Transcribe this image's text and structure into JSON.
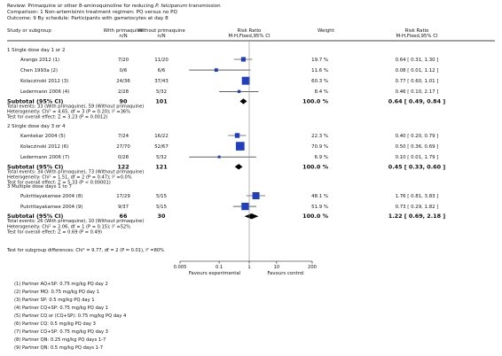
{
  "header": {
    "review_label": "Review:",
    "review_text": "Primaquine or other 8-aminoquinoline for reducing",
    "review_species": "P. falciparum",
    "review_tail": "transmission",
    "comparison_label": "Comparison:",
    "comparison_text": "1 Non-artemisinin treatment regimen: PQ versus no PQ",
    "outcome_label": "Outcome:",
    "outcome_text": "9 By schedule: Participants with gametocytes at day 8"
  },
  "columns": {
    "study": "Study or subgroup",
    "with": "With primaquine",
    "without": "Without primaquine",
    "n": "n/N",
    "rr": "Risk Ratio",
    "rr_method": "M-H,Fixed,95% CI",
    "weight": "Weight",
    "rr2": "Risk Ratio",
    "rr2_method": "M-H,Fixed,95% CI"
  },
  "chart_data": {
    "type": "forest",
    "x_scale": "log",
    "xlim": [
      0.005,
      200
    ],
    "x_ticks": [
      "0.005",
      "0.1",
      "1",
      "10",
      "200"
    ],
    "x_tick_values": [
      0.005,
      0.1,
      1,
      10,
      200
    ],
    "favours_left": "Favours experimental",
    "favours_right": "Favours control",
    "groups": [
      {
        "title": "1 Single dose day 1 or 2",
        "studies": [
          {
            "name": "Arango 2012 (1)",
            "with": "7/20",
            "without": "11/20",
            "weight": "19.7 %",
            "ci_text": "0.64 [ 0.31, 1.30 ]",
            "rr": 0.64,
            "lo": 0.31,
            "hi": 1.3,
            "w": 19.7
          },
          {
            "name": "Chen 1993a (2)",
            "with": "0/6",
            "without": "6/6",
            "weight": "11.6 %",
            "ci_text": "0.08 [ 0.01, 1.12 ]",
            "rr": 0.08,
            "lo": 0.01,
            "hi": 1.12,
            "w": 11.6
          },
          {
            "name": "Kolaczinski 2012 (3)",
            "with": "24/36",
            "without": "37/43",
            "weight": "60.3 %",
            "ci_text": "0.77 [ 0.60, 1.01 ]",
            "rr": 0.77,
            "lo": 0.6,
            "hi": 1.01,
            "w": 60.3
          },
          {
            "name": "Ledermann 2006 (4)",
            "with": "2/28",
            "without": "5/32",
            "weight": "8.4 %",
            "ci_text": "0.46 [ 0.10, 2.17 ]",
            "rr": 0.46,
            "lo": 0.1,
            "hi": 2.17,
            "w": 8.4
          }
        ],
        "subtotal": {
          "label": "Subtotal (95% CI)",
          "with_n": "90",
          "without_n": "101",
          "weight": "100.0 %",
          "ci_text": "0.64 [ 0.49, 0.84 ]",
          "rr": 0.64,
          "lo": 0.49,
          "hi": 0.84
        },
        "notes": [
          "Total events: 33 (With primaquine), 59 (Without primaquine)",
          "Heterogeneity: Chi² = 4.65, df = 3 (P = 0.20); I² =36%",
          "Test for overall effect: Z = 3.23 (P = 0.0012)"
        ]
      },
      {
        "title": "2 Single dose day 3 or 4",
        "studies": [
          {
            "name": "Kamtekar 2004 (5)",
            "with": "7/24",
            "without": "16/22",
            "weight": "22.3 %",
            "ci_text": "0.40 [ 0.20, 0.79 ]",
            "rr": 0.4,
            "lo": 0.2,
            "hi": 0.79,
            "w": 22.3
          },
          {
            "name": "Kolaczinski 2012 (6)",
            "with": "27/70",
            "without": "52/67",
            "weight": "70.9 %",
            "ci_text": "0.50 [ 0.36, 0.69 ]",
            "rr": 0.5,
            "lo": 0.36,
            "hi": 0.69,
            "w": 70.9
          },
          {
            "name": "Ledermann 2006 (7)",
            "with": "0/28",
            "without": "5/32",
            "weight": "6.9 %",
            "ci_text": "0.10 [ 0.01, 1.79 ]",
            "rr": 0.1,
            "lo": 0.01,
            "hi": 1.79,
            "w": 6.9
          }
        ],
        "subtotal": {
          "label": "Subtotal (95% CI)",
          "with_n": "122",
          "without_n": "121",
          "weight": "100.0 %",
          "ci_text": "0.45 [ 0.33, 0.60 ]",
          "rr": 0.45,
          "lo": 0.33,
          "hi": 0.6
        },
        "notes": [
          "Total events: 34 (With primaquine), 73 (Without primaquine)",
          "Heterogeneity: Chi² = 1.51, df = 2 (P = 0.47); I² =0.0%",
          "Test for overall effect: Z = 5.33 (P < 0.00001)"
        ]
      },
      {
        "title": "3 Multiple dose days 1 to 7",
        "studies": [
          {
            "name": "Pukrittayakamee 2004 (8)",
            "with": "17/29",
            "without": "5/15",
            "weight": "48.1 %",
            "ci_text": "1.76 [ 0.81, 3.83 ]",
            "rr": 1.76,
            "lo": 0.81,
            "hi": 3.83,
            "w": 48.1
          },
          {
            "name": "Pukrittayakamee 2004 (9)",
            "with": "9/37",
            "without": "5/15",
            "weight": "51.9 %",
            "ci_text": "0.73 [ 0.29, 1.82 ]",
            "rr": 0.73,
            "lo": 0.29,
            "hi": 1.82,
            "w": 51.9
          }
        ],
        "subtotal": {
          "label": "Subtotal (95% CI)",
          "with_n": "66",
          "without_n": "30",
          "weight": "100.0 %",
          "ci_text": "1.22 [ 0.69, 2.18 ]",
          "rr": 1.22,
          "lo": 0.69,
          "hi": 2.18
        },
        "notes": [
          "Total events: 26 (With primaquine), 10 (Without primaquine)",
          "Heterogeneity: Chi² = 2.06, df = 1 (P = 0.15); I² =52%",
          "Test for overall effect: Z = 0.69 (P = 0.49)"
        ]
      }
    ],
    "subgroup_test": "Test for subgroup differences: Chi² = 9.77, df = 2 (P = 0.01), I² =80%"
  },
  "footnotes": [
    "(1) Partner AQ+SP: 0.75 mg/kg PQ day 2",
    "(2) Partner MQ: 0.75 mg/kg PQ day 1",
    "(3) Partner SP: 0.5 mg/kg PQ day 1",
    "(4) Partner CQ+SP: 0.75 mg/kg PQ day 1",
    "(5) Partner CQ or (CQ+SP): 0.75 mg/kg PQ day 4",
    "(6) Partner CQ: 0.5 mg/kg PQ day 3",
    "(7) Partner CQ+SP: 0.75 mg/kg PQ day 3",
    "(8) Partner QN: 0.25 mg/kg PQ days 1-7",
    "(9) Partner QN: 0.5 mg/kg PQ days 1-7"
  ],
  "colors": {
    "marker": "#1f3fbf",
    "text": "#111111",
    "rule": "#000000"
  }
}
